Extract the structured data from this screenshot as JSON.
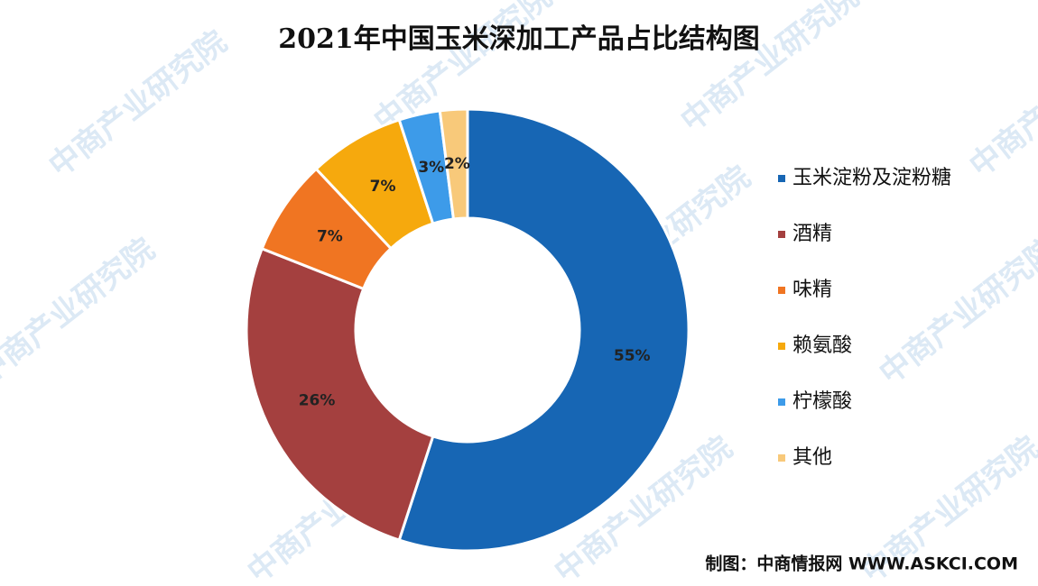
{
  "chart_data": {
    "type": "donut",
    "title": "2021年中国玉米深加工产品占比结构图",
    "categories": [
      "玉米淀粉及淀粉糖",
      "酒精",
      "味精",
      "赖氨酸",
      "柠檬酸",
      "其他"
    ],
    "values": [
      55,
      26,
      7,
      7,
      3,
      2
    ],
    "value_labels": [
      "55%",
      "26%",
      "7%",
      "7%",
      "3%",
      "2%"
    ],
    "colors": [
      "#1766b4",
      "#a4403f",
      "#f07522",
      "#f6a90d",
      "#3d9be9",
      "#f8c97a"
    ],
    "legend": "right",
    "source": "制图：中商情报网 WWW.ASKCI.COM",
    "watermark": "中商产业研究院"
  }
}
